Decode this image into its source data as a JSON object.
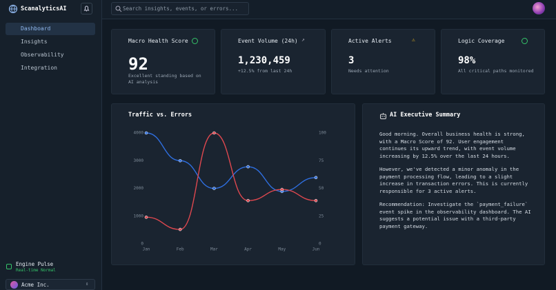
{
  "sidebar": {
    "brand": "ScanalyticsAI",
    "nav": [
      "Dashboard",
      "Insights",
      "Observability",
      "Integration"
    ],
    "status": {
      "title": "Engine Pulse",
      "detail": "Real-time Normal"
    },
    "workspace": "Acme Inc."
  },
  "header": {
    "search_placeholder": "Search insights, events, or errors..."
  },
  "kpis": [
    {
      "title": "Macro Health Score",
      "value": "92",
      "detail": "Excellent standing based on AI analysis"
    },
    {
      "title": "Event Volume (24h)",
      "value": "1,230,459",
      "detail": "+12.5% from last 24h"
    },
    {
      "title": "Active Alerts",
      "value": "3",
      "detail": "Needs attention"
    },
    {
      "title": "Logic Coverage",
      "value": "98%",
      "detail": "All critical paths monitored"
    }
  ],
  "chart_data": {
    "type": "line",
    "title": "Traffic vs. Errors",
    "categories": [
      "Jan",
      "Feb",
      "Mar",
      "Apr",
      "May",
      "Jun"
    ],
    "series": [
      {
        "color": "#2f6fe0",
        "values": [
          4000,
          3000,
          2000,
          2780,
          1890,
          2390
        ]
      },
      {
        "color": "#e0484f",
        "axis": "y2",
        "values": [
          24,
          13,
          100,
          39,
          49,
          39
        ]
      }
    ],
    "ylim": [
      0,
      4000
    ],
    "yticks": [
      0,
      1000,
      2000,
      3000,
      4000
    ],
    "y2lim": [
      0,
      100
    ],
    "y2ticks": [
      0,
      25,
      50,
      75,
      100
    ]
  },
  "summary": {
    "title": "AI Executive Summary",
    "paragraphs": [
      "Good morning. Overall business health is strong, with a Macro Score of 92. User engagement continues its upward trend, with event volume increasing by 12.5% over the last 24 hours.",
      "However, we've detected a minor anomaly in the payment processing flow, leading to a slight increase in transaction errors. This is currently responsible for 3 active alerts.",
      "Recommendation: Investigate the `payment_failure` event spike in the observability dashboard. The AI suggests a potential issue with a third-party payment gateway."
    ]
  }
}
